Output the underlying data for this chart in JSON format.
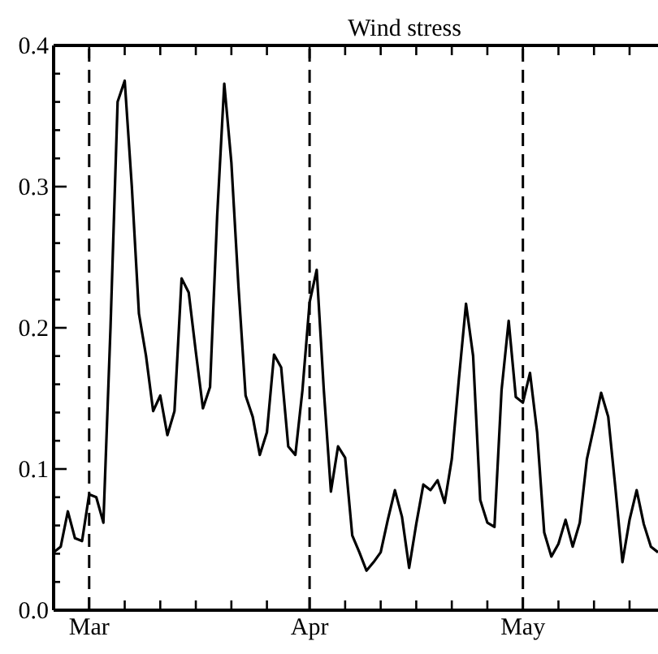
{
  "chart_data": {
    "type": "line",
    "title": "Wind stress",
    "x": [
      "--02-24",
      "--02-25",
      "--02-26",
      "--02-27",
      "--02-28",
      "--03-01",
      "--03-02",
      "--03-03",
      "--03-04",
      "--03-05",
      "--03-06",
      "--03-07",
      "--03-08",
      "--03-09",
      "--03-10",
      "--03-11",
      "--03-12",
      "--03-13",
      "--03-14",
      "--03-15",
      "--03-16",
      "--03-17",
      "--03-18",
      "--03-19",
      "--03-20",
      "--03-21",
      "--03-22",
      "--03-23",
      "--03-24",
      "--03-25",
      "--03-26",
      "--03-27",
      "--03-28",
      "--03-29",
      "--03-30",
      "--03-31",
      "--04-01",
      "--04-02",
      "--04-03",
      "--04-04",
      "--04-05",
      "--04-06",
      "--04-07",
      "--04-08",
      "--04-09",
      "--04-10",
      "--04-11",
      "--04-12",
      "--04-13",
      "--04-14",
      "--04-15",
      "--04-16",
      "--04-17",
      "--04-18",
      "--04-19",
      "--04-20",
      "--04-21",
      "--04-22",
      "--04-23",
      "--04-24",
      "--04-25",
      "--04-26",
      "--04-27",
      "--04-28",
      "--04-29",
      "--04-30",
      "--05-01",
      "--05-02",
      "--05-03",
      "--05-04",
      "--05-05",
      "--05-06",
      "--05-07",
      "--05-08",
      "--05-09",
      "--05-10",
      "--05-11",
      "--05-12",
      "--05-13",
      "--05-14",
      "--05-15",
      "--05-16",
      "--05-17",
      "--05-18",
      "--05-19",
      "--05-20"
    ],
    "series": [
      {
        "color": "#000000",
        "values": [
          0.041,
          0.045,
          0.07,
          0.051,
          0.049,
          0.082,
          0.08,
          0.062,
          0.2,
          0.36,
          0.375,
          0.3,
          0.21,
          0.18,
          0.141,
          0.152,
          0.124,
          0.141,
          0.235,
          0.225,
          0.183,
          0.143,
          0.158,
          0.279,
          0.373,
          0.317,
          0.229,
          0.152,
          0.137,
          0.11,
          0.126,
          0.181,
          0.172,
          0.116,
          0.11,
          0.156,
          0.218,
          0.241,
          0.156,
          0.084,
          0.116,
          0.108,
          0.053,
          0.041,
          0.028,
          0.034,
          0.041,
          0.064,
          0.085,
          0.066,
          0.03,
          0.061,
          0.089,
          0.085,
          0.092,
          0.076,
          0.107,
          0.164,
          0.217,
          0.18,
          0.078,
          0.062,
          0.059,
          0.156,
          0.205,
          0.151,
          0.147,
          0.168,
          0.126,
          0.055,
          0.038,
          0.047,
          0.064,
          0.045,
          0.062,
          0.107,
          0.13,
          0.154,
          0.137,
          0.087,
          0.034,
          0.064,
          0.085,
          0.061,
          0.045,
          0.041
        ]
      }
    ],
    "xlim": [
      "--02-24",
      "--05-20"
    ],
    "xticks": [
      {
        "value": "--03-01",
        "label": "Mar"
      },
      {
        "value": "--03-06",
        "label": null
      },
      {
        "value": "--03-11",
        "label": null
      },
      {
        "value": "--03-16",
        "label": null
      },
      {
        "value": "--03-21",
        "label": null
      },
      {
        "value": "--03-26",
        "label": null
      },
      {
        "value": "--04-01",
        "label": "Apr"
      },
      {
        "value": "--04-06",
        "label": null
      },
      {
        "value": "--04-11",
        "label": null
      },
      {
        "value": "--04-16",
        "label": null
      },
      {
        "value": "--04-21",
        "label": null
      },
      {
        "value": "--04-26",
        "label": null
      },
      {
        "value": "--05-01",
        "label": "May"
      },
      {
        "value": "--05-06",
        "label": null
      },
      {
        "value": "--05-11",
        "label": null
      },
      {
        "value": "--05-16",
        "label": null
      }
    ],
    "ylim": [
      0,
      0.4
    ],
    "yticks": [
      {
        "value": 0,
        "label": "0.0"
      },
      {
        "value": 0.02,
        "label": null
      },
      {
        "value": 0.04,
        "label": null
      },
      {
        "value": 0.06,
        "label": null
      },
      {
        "value": 0.08,
        "label": null
      },
      0.1,
      {
        "value": 0.12,
        "label": null
      },
      {
        "value": 0.14,
        "label": null
      },
      {
        "value": 0.16,
        "label": null
      },
      {
        "value": 0.18,
        "label": null
      },
      0.2,
      {
        "value": 0.22,
        "label": null
      },
      {
        "value": 0.24,
        "label": null
      },
      {
        "value": 0.26,
        "label": null
      },
      {
        "value": 0.28,
        "label": null
      },
      0.3,
      {
        "value": 0.32,
        "label": null
      },
      {
        "value": 0.34,
        "label": null
      },
      {
        "value": 0.36,
        "label": null
      },
      {
        "value": 0.38,
        "label": null
      },
      0.4
    ],
    "ref_lines": [
      {
        "axis": "x",
        "value": "--03-01",
        "line_style": "dashed"
      },
      {
        "axis": "x",
        "value": "--04-01",
        "line_style": "dashed"
      },
      {
        "axis": "x",
        "value": "--05-01",
        "line_style": "dashed"
      }
    ],
    "marker": "none",
    "line_style": "solid"
  }
}
